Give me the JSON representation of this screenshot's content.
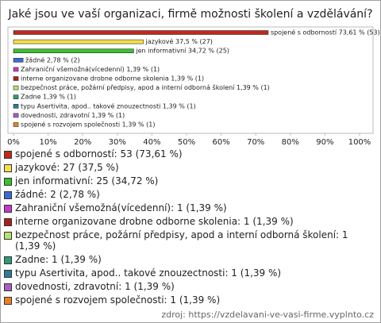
{
  "chart_data": {
    "type": "bar",
    "orientation": "horizontal",
    "title": "Jaké jsou ve vaší organizaci, firmě možnosti školení a vzdělávání?",
    "categories": [
      "spojené s odborností",
      "jazykové",
      "jen informativní",
      "žádné",
      "Zahraniční všemožná(vícedenní)",
      "interne organizovane drobne odborne skolenia",
      "bezpečnost práce, požární předpisy, apod a interní odborná školení",
      "Zadne",
      "typu Asertivita, apod.. takové znouzectnosti",
      "dovednosti, zdravotní",
      "spojené s rozvojem společnosti"
    ],
    "values": [
      73.61,
      37.5,
      34.72,
      2.78,
      1.39,
      1.39,
      1.39,
      1.39,
      1.39,
      1.39,
      1.39
    ],
    "value_labels": [
      "spojené s odborností 73,61 % (53)",
      "jazykové 37,5 % (27)",
      "jen informativní 34,72 % (25)",
      "žádné 2,78 % (2)",
      "Zahraniční všemožná(vícedenní) 1,39 % (1)",
      "interne organizovane drobne odborne skolenia 1,39 % (1)",
      "bezpečnost práce, požární předpisy, apod a interní odborná školení 1,39 % (1)",
      "Zadne 1,39 % (1)",
      "typu Asertivita, apod.. takové znouzectnosti 1,39 % (1)",
      "dovednosti, zdravotní 1,39 % (1)",
      "spojené s rozvojem společnosti 1,39 % (1)"
    ],
    "colors": [
      "#c0281c",
      "#f4e04a",
      "#3cbf2e",
      "#3a6ad4",
      "#c03cc8",
      "#a8201c",
      "#b8e070",
      "#2f9a74",
      "#2f7a98",
      "#a660c0",
      "#e8802a"
    ],
    "legend": [
      "spojené s odborností: 53 (73,61 %)",
      "jazykové: 27 (37,5 %)",
      "jen informativní: 25 (34,72 %)",
      "žádné: 2 (2,78 %)",
      "Zahraniční všemožná(vícedenní): 1 (1,39 %)",
      "interne organizovane drobne odborne skolenia: 1 (1,39 %)",
      "bezpečnost práce, požární předpisy, apod a interní odborná školení: 1 (1,39 %)",
      "Zadne: 1 (1,39 %)",
      "typu Asertivita, apod.. takové znouzectnosti: 1 (1,39 %)",
      "dovednosti, zdravotní: 1 (1,39 %)",
      "spojené s rozvojem společnosti: 1 (1,39 %)"
    ],
    "xlim": [
      0,
      100
    ],
    "xticks": [
      {
        "value": 0,
        "label": "0%"
      },
      {
        "value": 10,
        "label": "10%"
      },
      {
        "value": 20,
        "label": "20%"
      },
      {
        "value": 30,
        "label": "30%"
      },
      {
        "value": 40,
        "label": "40%"
      },
      {
        "value": 50,
        "label": "50%"
      },
      {
        "value": 60,
        "label": "60%"
      },
      {
        "value": 70,
        "label": "70%"
      },
      {
        "value": 80,
        "label": "80%"
      },
      {
        "value": 90,
        "label": "90%"
      },
      {
        "value": 100,
        "label": "100%"
      }
    ],
    "source": "zdroj: https://vzdelavani-ve-vasi-firme.vyplnto.cz"
  }
}
